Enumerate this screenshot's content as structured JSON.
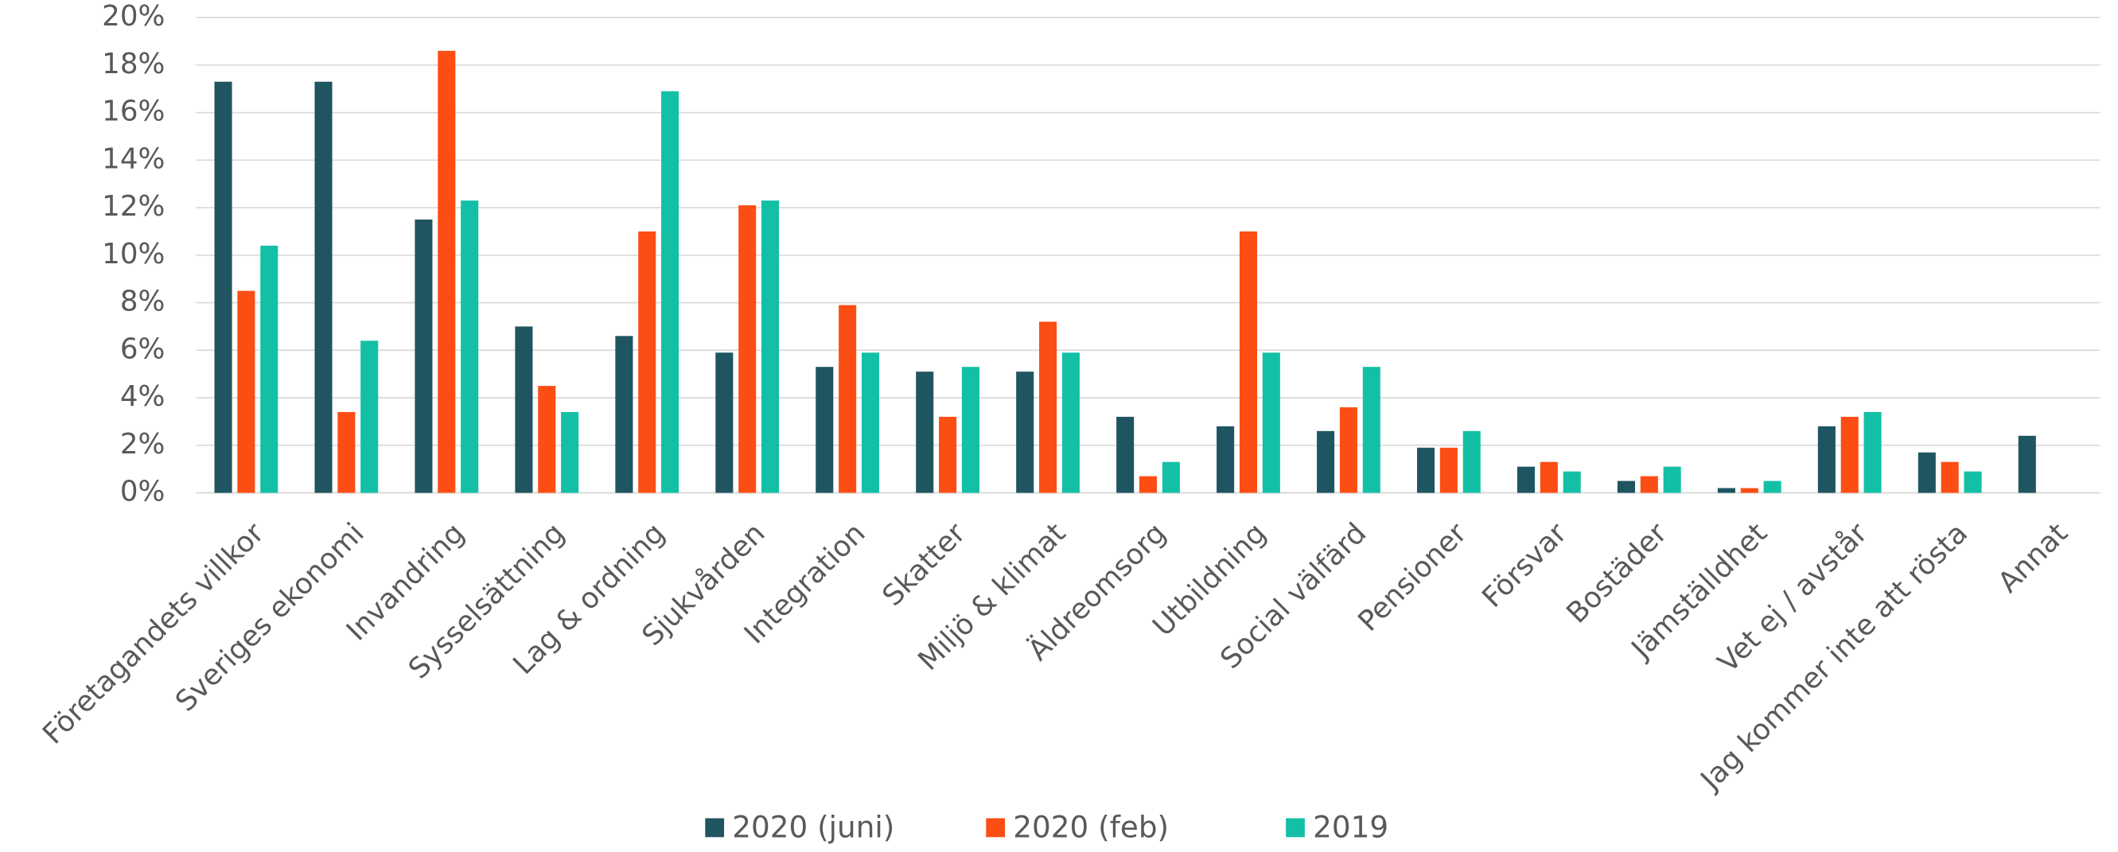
{
  "chart_data": {
    "type": "bar",
    "categories": [
      "Företagandets villkor",
      "Sveriges ekonomi",
      "Invandring",
      "Sysselsättning",
      "Lag & ordning",
      "Sjukvården",
      "Integration",
      "Skatter",
      "Miljö & klimat",
      "Äldreomsorg",
      "Utbildning",
      "Social välfärd",
      "Pensioner",
      "Försvar",
      "Bostäder",
      "Jämställdhet",
      "Vet ej / avstår",
      "Jag kommer inte att rösta",
      "Annat"
    ],
    "series": [
      {
        "name": "2020 (juni)",
        "color": "#1f5560",
        "values": [
          17.3,
          17.3,
          11.5,
          7.0,
          6.6,
          5.9,
          5.3,
          5.1,
          5.1,
          3.2,
          2.8,
          2.6,
          1.9,
          1.1,
          0.5,
          0.2,
          2.8,
          1.7,
          2.4
        ]
      },
      {
        "name": "2020 (feb)",
        "color": "#fc4e14",
        "values": [
          8.5,
          3.4,
          18.6,
          4.5,
          11.0,
          12.1,
          7.9,
          3.2,
          7.2,
          0.7,
          11.0,
          3.6,
          1.9,
          1.3,
          0.7,
          0.2,
          3.2,
          1.3,
          null
        ]
      },
      {
        "name": "2019",
        "color": "#13c0a6",
        "values": [
          10.4,
          6.4,
          12.3,
          3.4,
          16.9,
          12.3,
          5.9,
          5.3,
          5.9,
          1.3,
          5.9,
          5.3,
          2.6,
          0.9,
          1.1,
          0.5,
          3.4,
          0.9,
          null
        ]
      }
    ],
    "ylim": [
      0,
      20
    ],
    "yticks": [
      {
        "value": 0,
        "label": "0%"
      },
      {
        "value": 2,
        "label": "2%"
      },
      {
        "value": 4,
        "label": "4%"
      },
      {
        "value": 6,
        "label": "6%"
      },
      {
        "value": 8,
        "label": "8%"
      },
      {
        "value": 10,
        "label": "10%"
      },
      {
        "value": 12,
        "label": "12%"
      },
      {
        "value": 14,
        "label": "14%"
      },
      {
        "value": 16,
        "label": "16%"
      },
      {
        "value": 18,
        "label": "18%"
      },
      {
        "value": 20,
        "label": "20%"
      }
    ],
    "grid": true,
    "legend": "bottom"
  }
}
